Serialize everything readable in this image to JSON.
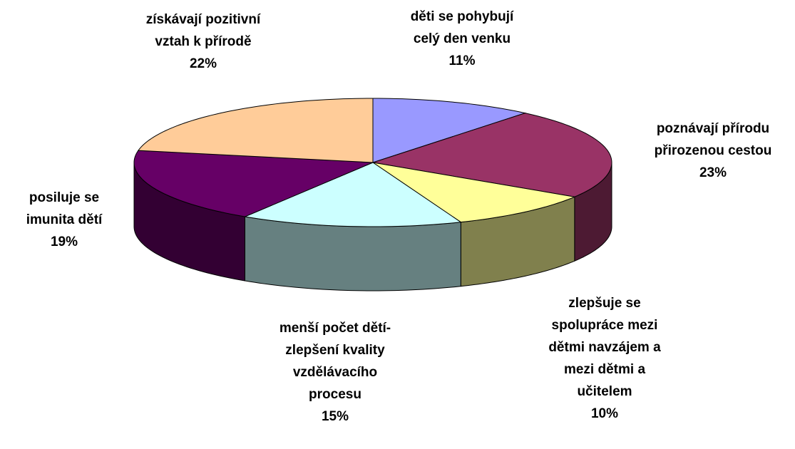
{
  "chart_data": {
    "type": "pie3d",
    "categories": [
      "děti se pohybují\ncelý den venku",
      "poznávají přírodu\npřirozenou cestou",
      "zlepšuje se\nspolupráce mezi\ndětmi navzájem a\nmezi dětmi a\nučitelem",
      "menší počet dětí-\nzlepšení kvality\nvzdělávacího\nprocesu",
      "posiluje se\nimunita dětí",
      "získávají pozitivní\nvztah k přírodě"
    ],
    "values": [
      11,
      23,
      10,
      15,
      19,
      22
    ],
    "value_labels": [
      "11%",
      "23%",
      "10%",
      "15%",
      "19%",
      "22%"
    ],
    "colors": [
      "#9999ff",
      "#993366",
      "#ffff99",
      "#ccffff",
      "#660066",
      "#ffcc99"
    ]
  }
}
